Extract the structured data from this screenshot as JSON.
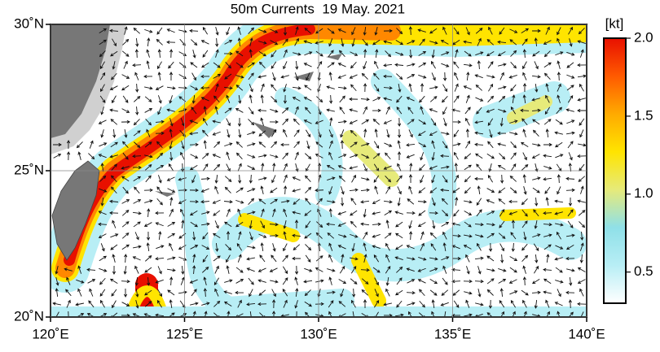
{
  "chart_data": {
    "type": "map",
    "title": "50m Currents  19 May. 2021",
    "xlim": [
      120,
      140
    ],
    "ylim": [
      20,
      30
    ],
    "xticks": [
      {
        "value": 120,
        "label": "120˚E"
      },
      {
        "value": 125,
        "label": "125˚E"
      },
      {
        "value": 130,
        "label": "130˚E"
      },
      {
        "value": 135,
        "label": "135˚E"
      },
      {
        "value": 140,
        "label": "140˚E"
      }
    ],
    "yticks": [
      {
        "value": 20,
        "label": "20˚N"
      },
      {
        "value": 25,
        "label": "25˚N"
      },
      {
        "value": 30,
        "label": "30˚N"
      }
    ],
    "grid": true,
    "colorbar": {
      "label": "[kt]",
      "lim": [
        0.3,
        2.0
      ],
      "ticks": [
        0.5,
        {
          "value": 1,
          "label": "1.0"
        },
        1.5,
        {
          "value": 2,
          "label": "2.0"
        }
      ],
      "colors": [
        "#ffffff",
        "#b8eef5",
        "#8fe0e8",
        "#e6ea7a",
        "#ffe400",
        "#ffaa00",
        "#ff5a00",
        "#e81000"
      ]
    }
  }
}
